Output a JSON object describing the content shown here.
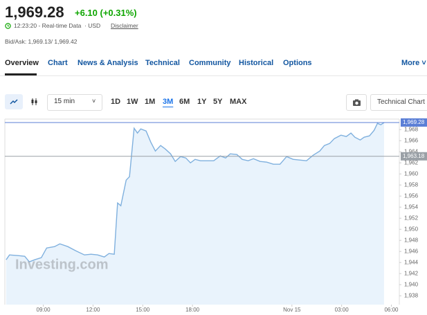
{
  "header": {
    "price": "1,969.28",
    "change": "+6.10 (+0.31%)",
    "time": "12:23:20 - Real-time Data",
    "currency": "· USD",
    "disclaimer": "Disclaimer",
    "bid_ask": "Bid/Ask: 1,969.13/ 1,969.42"
  },
  "nav": {
    "tabs": [
      "Overview",
      "Chart",
      "News & Analysis",
      "Technical",
      "Community",
      "Historical",
      "Options"
    ],
    "active_tab": 0,
    "more": "More"
  },
  "toolbar": {
    "interval": "15 min",
    "ranges": [
      "1D",
      "1W",
      "1M",
      "3M",
      "6M",
      "1Y",
      "5Y",
      "MAX"
    ],
    "active_range": 3,
    "button": "Technical Chart"
  },
  "chart": {
    "type": "line",
    "color": "#7fb0de",
    "fill": "#e5f1fb",
    "x": [
      6.76,
      6.96,
      7.48,
      7.88,
      8.16,
      8.48,
      8.88,
      9.2,
      9.68,
      10,
      10.48,
      10.96,
      11.48,
      11.88,
      12.28,
      12.68,
      12.96,
      13.28,
      13.48,
      13.68,
      14,
      14.2,
      14.48,
      14.68,
      14.88,
      15.2,
      15.48,
      15.76,
      16.08,
      16.36,
      16.68,
      16.96,
      17.28,
      17.6,
      17.88,
      18.16,
      18.48,
      18.88,
      19.28,
      19.68,
      20,
      20.28,
      20.68,
      21,
      21.36,
      21.68,
      22.08,
      22.48,
      22.88,
      23.28,
      23.68,
      24.08,
      24.48,
      24.88,
      25.28,
      25.68,
      25.96,
      26.28,
      26.56,
      26.96,
      27.28,
      27.56,
      27.8,
      28.12,
      28.36,
      28.68,
      28.96,
      29.16,
      29.36,
      29.56
    ],
    "values": [
      1944.5,
      1945.38,
      1945.25,
      1945.13,
      1944.13,
      1944.5,
      1944.88,
      1946.63,
      1946.88,
      1947.38,
      1946.88,
      1946.13,
      1945.38,
      1945.5,
      1945.38,
      1945,
      1945.63,
      1945.5,
      1954.75,
      1954.25,
      1958.88,
      1959.5,
      1968.25,
      1967.38,
      1968.13,
      1967.75,
      1965.75,
      1964.13,
      1965.13,
      1964.5,
      1963.63,
      1962.25,
      1963.13,
      1962.88,
      1962,
      1962.63,
      1962.38,
      1962.38,
      1962.38,
      1963.25,
      1962.88,
      1963.63,
      1963.5,
      1962.63,
      1962.38,
      1962.75,
      1962.25,
      1962.13,
      1961.75,
      1961.75,
      1963.13,
      1962.63,
      1962.5,
      1962.38,
      1963.38,
      1964.13,
      1965.13,
      1965.5,
      1966.38,
      1967,
      1966.75,
      1967.38,
      1966.63,
      1966.13,
      1966.63,
      1966.88,
      1967.88,
      1969.13,
      1968.88,
      1969.28
    ],
    "xlim": [
      6.68,
      30.48
    ],
    "xticks": [
      {
        "value": 9,
        "label": "09:00"
      },
      {
        "value": 12,
        "label": "12:00"
      },
      {
        "value": 15,
        "label": "15:00"
      },
      {
        "value": 18,
        "label": "18:00"
      },
      {
        "value": 24,
        "label": "Nov 15"
      },
      {
        "value": 27,
        "label": "03:00"
      },
      {
        "value": 30,
        "label": "06:00"
      }
    ],
    "ylim": [
      1936.4,
      1969.9
    ],
    "yticks": [
      {
        "value": 1938,
        "label": "1,938"
      },
      {
        "value": 1940,
        "label": "1,940"
      },
      {
        "value": 1942,
        "label": "1,942"
      },
      {
        "value": 1944,
        "label": "1,944"
      },
      {
        "value": 1946,
        "label": "1,946"
      },
      {
        "value": 1948,
        "label": "1,948"
      },
      {
        "value": 1950,
        "label": "1,950"
      },
      {
        "value": 1952,
        "label": "1,952"
      },
      {
        "value": 1954,
        "label": "1,954"
      },
      {
        "value": 1956,
        "label": "1,956"
      },
      {
        "value": 1958,
        "label": "1,958"
      },
      {
        "value": 1960,
        "label": "1,960"
      },
      {
        "value": 1962,
        "label": "1,962"
      },
      {
        "value": 1964,
        "label": "1,964"
      },
      {
        "value": 1966,
        "label": "1,966"
      },
      {
        "value": 1968,
        "label": "1,968"
      }
    ],
    "price_line": {
      "value": 1969.28,
      "label": "1,969.28",
      "color": "#5b7fd6"
    },
    "prev_close_line": {
      "value": 1963.18,
      "label": "1,963.18",
      "color": "#9aa0a6"
    },
    "watermark": "Investing.com"
  }
}
